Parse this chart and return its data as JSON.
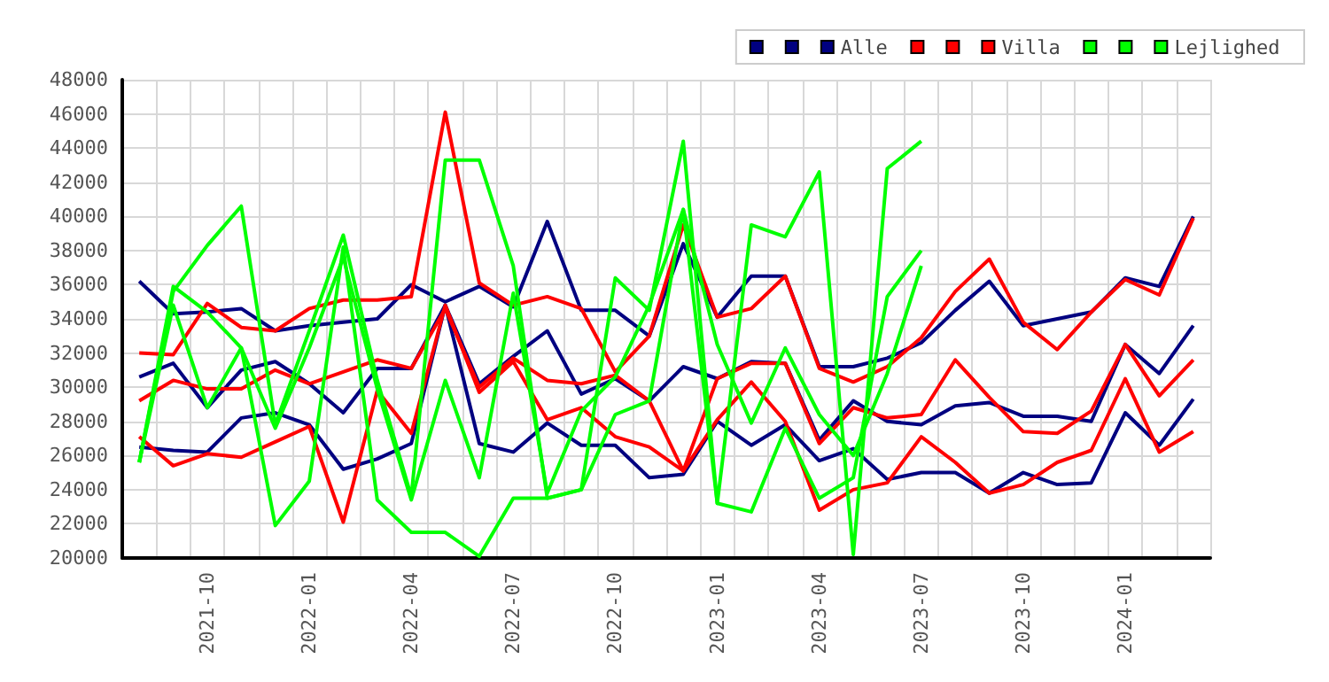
{
  "chart_data": {
    "type": "line",
    "categories": [
      null,
      null,
      "2021-10",
      null,
      null,
      "2022-01",
      null,
      null,
      "2022-04",
      null,
      null,
      "2022-07",
      null,
      null,
      "2022-10",
      null,
      null,
      "2023-01",
      null,
      null,
      "2023-04",
      null,
      null,
      "2023-07",
      null,
      null,
      "2023-10",
      null,
      null,
      "2024-01",
      null,
      null
    ],
    "series": [
      {
        "color": "#000080",
        "values": [
          36200,
          34300,
          34400,
          34600,
          33300,
          33600,
          33800,
          34000,
          36000,
          35000,
          35900,
          34700,
          39700,
          34500,
          34500,
          33000,
          38400,
          34100,
          36500,
          36500,
          31200,
          31200,
          31700,
          32600,
          34500,
          36200,
          33600,
          34000,
          34400,
          36400,
          35900,
          40000
        ]
      },
      {
        "color": "#000080",
        "values": [
          30600,
          31400,
          28800,
          31000,
          31500,
          30200,
          28500,
          31100,
          31100,
          34800,
          30200,
          31800,
          33300,
          29600,
          30500,
          29200,
          31200,
          30500,
          31500,
          31400,
          26900,
          29200,
          28000,
          27800,
          28900,
          29100,
          28300,
          28300,
          28000,
          32500,
          30800,
          33600
        ]
      },
      {
        "name": "Alle",
        "color": "#000080",
        "values": [
          26500,
          26300,
          26200,
          28200,
          28500,
          27800,
          25200,
          25800,
          26700,
          34800,
          26700,
          26200,
          27900,
          26600,
          26600,
          24700,
          24900,
          28000,
          26600,
          27800,
          25700,
          26400,
          24600,
          25000,
          25000,
          23800,
          25000,
          24300,
          24400,
          28500,
          26600,
          29300
        ]
      },
      {
        "color": "#ff0000",
        "values": [
          32000,
          31900,
          34900,
          33500,
          33300,
          34600,
          35100,
          35100,
          35300,
          46100,
          36100,
          34800,
          35300,
          34600,
          30900,
          33000,
          39500,
          34100,
          34600,
          36500,
          31100,
          30300,
          31200,
          32900,
          35600,
          37500,
          33800,
          32200,
          34400,
          36300,
          35400,
          39900
        ]
      },
      {
        "color": "#ff0000",
        "values": [
          29200,
          30400,
          29900,
          29900,
          31000,
          30200,
          30900,
          31600,
          31100,
          34600,
          30000,
          31700,
          30400,
          30200,
          30700,
          29200,
          25100,
          30500,
          31400,
          31400,
          26700,
          28800,
          28200,
          28400,
          31600,
          29400,
          27400,
          27300,
          28600,
          32500,
          29500,
          31600
        ]
      },
      {
        "name": "Villa",
        "color": "#ff0000",
        "values": [
          27100,
          25400,
          26100,
          25900,
          26800,
          27700,
          22100,
          29800,
          27300,
          34800,
          29700,
          31500,
          28100,
          28800,
          27100,
          26500,
          25100,
          28100,
          30300,
          28000,
          22800,
          24000,
          24400,
          27100,
          25600,
          23800,
          24300,
          25600,
          26300,
          30500,
          26200,
          27400
        ]
      },
      {
        "color": "#00ff00",
        "values": [
          25600,
          35600,
          38300,
          40600,
          27800,
          33300,
          38900,
          30400,
          23600,
          43300,
          43300,
          37100,
          23500,
          24000,
          36400,
          34500,
          44400,
          23200,
          39500,
          38800,
          42600,
          20200,
          42800,
          44400,
          null,
          null,
          null,
          null,
          null,
          null,
          null,
          null
        ]
      },
      {
        "color": "#00ff00",
        "values": [
          25600,
          35900,
          34400,
          32300,
          21900,
          24500,
          38200,
          23400,
          21500,
          21500,
          20100,
          23500,
          23500,
          24000,
          28400,
          29200,
          40400,
          23200,
          22700,
          27600,
          23500,
          24700,
          35300,
          38000,
          null,
          null,
          null,
          null,
          null,
          null,
          null,
          null
        ]
      },
      {
        "name": "Lejlighed",
        "color": "#00ff00",
        "values": [
          25600,
          34800,
          28800,
          32300,
          27600,
          32300,
          37600,
          29900,
          23400,
          30400,
          24700,
          35500,
          23800,
          28600,
          30600,
          34800,
          40400,
          32500,
          27900,
          32300,
          28400,
          26000,
          30800,
          37100,
          null,
          null,
          null,
          null,
          null,
          null,
          null,
          null
        ]
      }
    ],
    "ylim": [
      20000,
      48000
    ],
    "yticks": [
      20000,
      22000,
      24000,
      26000,
      28000,
      30000,
      32000,
      34000,
      36000,
      38000,
      40000,
      42000,
      44000,
      46000,
      48000
    ],
    "grid": true,
    "legend": "top right",
    "marker": "none",
    "line_style": "solid"
  }
}
